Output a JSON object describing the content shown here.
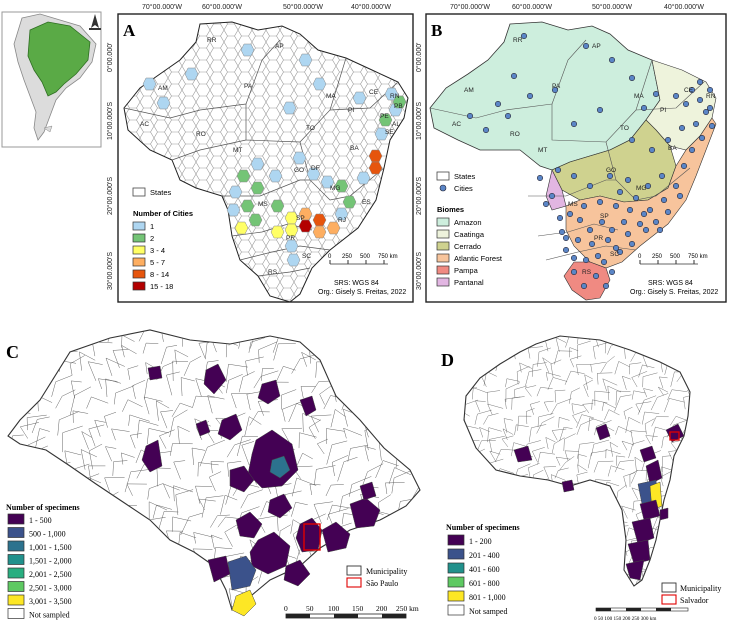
{
  "panels": {
    "A": {
      "letter": "A",
      "top_coords": [
        "70°00.000'W",
        "60°00.000'W",
        "50°00.000'W",
        "40°00.000'W"
      ],
      "side_coords": [
        "0°00.000'",
        "10°00.000'S",
        "20°00.000'S",
        "30°00.000'S"
      ],
      "states": [
        "RR",
        "AP",
        "AM",
        "PA",
        "MA",
        "CE",
        "RN",
        "PB",
        "PI",
        "PE",
        "AL",
        "SE",
        "AC",
        "RO",
        "TO",
        "BA",
        "MT",
        "GO",
        "DF",
        "MG",
        "ES",
        "MS",
        "SP",
        "RJ",
        "PR",
        "SC",
        "RS"
      ],
      "legend": {
        "states_label": "States",
        "title": "Number of Cities",
        "items": [
          {
            "label": "1",
            "color": "#aed6f1"
          },
          {
            "label": "2",
            "color": "#74c476"
          },
          {
            "label": "3 - 4",
            "color": "#ffff66"
          },
          {
            "label": "5 - 7",
            "color": "#fdae61"
          },
          {
            "label": "8 - 14",
            "color": "#e6550d"
          },
          {
            "label": "15 - 18",
            "color": "#b30000"
          }
        ]
      },
      "scale_ticks": [
        "0",
        "250",
        "500",
        "750 km"
      ],
      "srs": "SRS: WGS 84",
      "org": "Org.: Gisely S. Freitas, 2022"
    },
    "B": {
      "letter": "B",
      "top_coords": [
        "70°00.000'W",
        "60°00.000'W",
        "50°00.000'W",
        "40°00.000'W"
      ],
      "side_coords": [
        "0°00.000'",
        "10°00.000'S",
        "20°00.000'S",
        "30°00.000'S"
      ],
      "legend": {
        "states_label": "States",
        "cities_label": "Cities",
        "title": "Biomes",
        "items": [
          {
            "label": "Amazon",
            "color": "#cdeedd"
          },
          {
            "label": "Caatinga",
            "color": "#eef3dc"
          },
          {
            "label": "Cerrado",
            "color": "#cfd28f"
          },
          {
            "label": "Atlantic Forest",
            "color": "#f7c49c"
          },
          {
            "label": "Pampa",
            "color": "#f08a82"
          },
          {
            "label": "Pantanal",
            "color": "#e2b6e2"
          }
        ]
      },
      "scale_ticks": [
        "0",
        "250",
        "500",
        "750 km"
      ],
      "srs": "SRS: WGS 84",
      "org": "Org.: Gisely S. Freitas, 2022"
    },
    "C": {
      "letter": "C",
      "legend": {
        "title": "Number of specimens",
        "items": [
          {
            "label": "1 - 500",
            "color": "#440154"
          },
          {
            "label": "500 - 1,000",
            "color": "#3b528b"
          },
          {
            "label": "1,001 - 1,500",
            "color": "#2c728e"
          },
          {
            "label": "1,501 - 2,000",
            "color": "#21918c"
          },
          {
            "label": "2,001 - 2,500",
            "color": "#28ae80"
          },
          {
            "label": "2,501 - 3,000",
            "color": "#5ec962"
          },
          {
            "label": "3,001 - 3,500",
            "color": "#fde725"
          },
          {
            "label": "Not sampled",
            "color": "#ffffff"
          }
        ],
        "municipality_label": "Municipality",
        "city_label": "São Paulo"
      },
      "scale_ticks": [
        "0",
        "50",
        "100",
        "150",
        "200",
        "250 km"
      ]
    },
    "D": {
      "letter": "D",
      "legend": {
        "title": "Number of specimens",
        "items": [
          {
            "label": "1 - 200",
            "color": "#440154"
          },
          {
            "label": "201 - 400",
            "color": "#3b528b"
          },
          {
            "label": "401 - 600",
            "color": "#21918c"
          },
          {
            "label": "601 - 800",
            "color": "#5ec962"
          },
          {
            "label": "801 - 1,000",
            "color": "#fde725"
          },
          {
            "label": "Not samped",
            "color": "#ffffff"
          }
        ],
        "municipality_label": "Municipality",
        "city_label": "Salvador"
      },
      "scale_text": "0  50 100 150 200 250 300 km"
    }
  }
}
